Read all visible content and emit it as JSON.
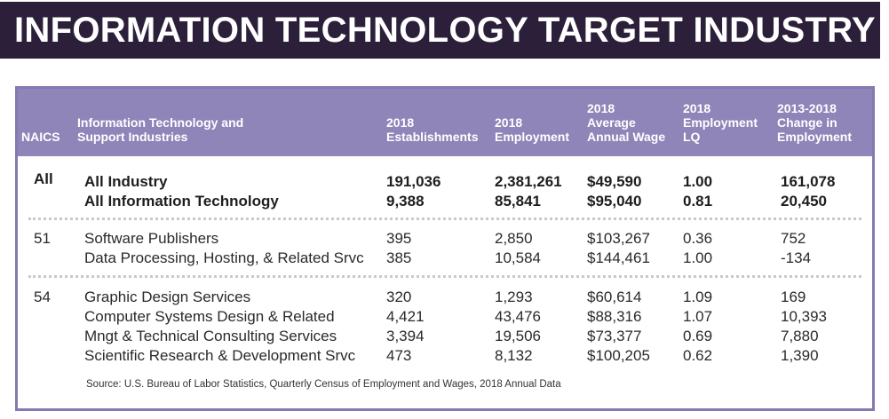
{
  "title": "INFORMATION TECHNOLOGY TARGET INDUSTRY",
  "headers": {
    "naics": "NAICS",
    "industry": "Information Technology and\nSupport Industries",
    "establishments": "2018\nEstablishments",
    "employment": "2018\nEmployment",
    "wage": "2018\nAverage\nAnnual Wage",
    "lq": "2018\nEmployment\nLQ",
    "change": "2013-2018\nChange in\nEmployment"
  },
  "groups": [
    {
      "naics": "All",
      "rows": [
        {
          "industry": "All Industry",
          "establishments": "191,036",
          "employment": "2,381,261",
          "wage": "$49,590",
          "lq": "1.00",
          "change": "161,078"
        },
        {
          "industry": "All Information Technology",
          "establishments": "9,388",
          "employment": "85,841",
          "wage": "$95,040",
          "lq": "0.81",
          "change": "20,450"
        }
      ]
    },
    {
      "naics": "51",
      "rows": [
        {
          "industry": "Software Publishers",
          "establishments": "395",
          "employment": "2,850",
          "wage": "$103,267",
          "lq": "0.36",
          "change": "752"
        },
        {
          "industry": "Data Processing, Hosting, & Related Srvc",
          "establishments": "385",
          "employment": "10,584",
          "wage": "$144,461",
          "lq": "1.00",
          "change": "-134"
        }
      ]
    },
    {
      "naics": "54",
      "rows": [
        {
          "industry": "Graphic Design Services",
          "establishments": "320",
          "employment": "1,293",
          "wage": "$60,614",
          "lq": "1.09",
          "change": "169"
        },
        {
          "industry": "Computer Systems Design & Related",
          "establishments": "4,421",
          "employment": "43,476",
          "wage": "$88,316",
          "lq": "1.07",
          "change": "10,393"
        },
        {
          "industry": "Mngt & Technical Consulting Services",
          "establishments": "3,394",
          "employment": "19,506",
          "wage": "$73,377",
          "lq": "0.69",
          "change": "7,880"
        },
        {
          "industry": "Scientific Research & Development Srvc",
          "establishments": "473",
          "employment": "8,132",
          "wage": "$100,205",
          "lq": "0.62",
          "change": "1,390"
        }
      ]
    }
  ],
  "source": "Source: U.S. Bureau of Labor Statistics, Quarterly Census of Employment and Wages, 2018 Annual Data"
}
